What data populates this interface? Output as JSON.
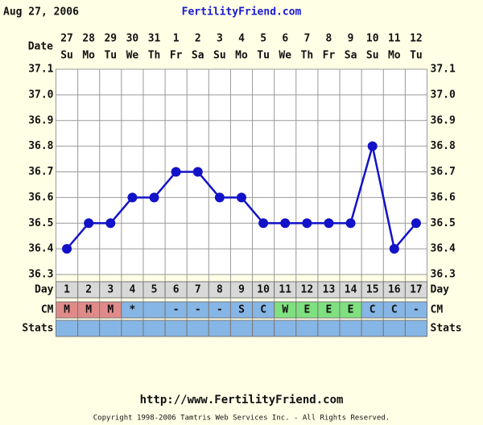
{
  "date": "Aug 27, 2006",
  "site": "FertilityFriend.com",
  "chart_data": {
    "type": "line",
    "row_labels": {
      "date": "Date",
      "day": "Day",
      "cm": "CM",
      "stats": "Stats"
    },
    "categories": [
      "27",
      "28",
      "29",
      "30",
      "31",
      "1",
      "2",
      "3",
      "4",
      "5",
      "6",
      "7",
      "8",
      "9",
      "10",
      "11",
      "12"
    ],
    "weekdays": [
      "Su",
      "Mo",
      "Tu",
      "We",
      "Th",
      "Fr",
      "Sa",
      "Su",
      "Mo",
      "Tu",
      "We",
      "Th",
      "Fr",
      "Sa",
      "Su",
      "Mo",
      "Tu"
    ],
    "values": [
      36.4,
      36.5,
      36.5,
      36.6,
      36.6,
      36.7,
      36.7,
      36.6,
      36.6,
      36.5,
      36.5,
      36.5,
      36.5,
      36.5,
      36.8,
      36.4,
      36.5
    ],
    "color": "#1212c8",
    "days": [
      1,
      2,
      3,
      4,
      5,
      6,
      7,
      8,
      9,
      10,
      11,
      12,
      13,
      14,
      15,
      16,
      17
    ],
    "cm": [
      "M",
      "M",
      "M",
      "*",
      null,
      "-",
      "-",
      "-",
      "S",
      "C",
      "W",
      "E",
      "E",
      "E",
      "C",
      "C",
      "-"
    ],
    "cm_colors": {
      "M": "#e08a8a",
      "W": "#7fe07f",
      "E": "#7fe07f"
    },
    "cm_default_color": "#86b6e6",
    "ylim": [
      36.3,
      37.1
    ],
    "yticks": [
      {
        "value": 37.1,
        "label": "37.1"
      },
      {
        "value": 37,
        "label": "37.0"
      },
      36.9,
      36.8,
      36.7,
      36.6,
      36.5,
      36.4,
      36.3
    ],
    "grid": true
  },
  "footer": {
    "url": "http://www.FertilityFriend.com",
    "copyright": "Copyright 1998-2006 Tamtris Web Services Inc. - All Rights Reserved."
  }
}
